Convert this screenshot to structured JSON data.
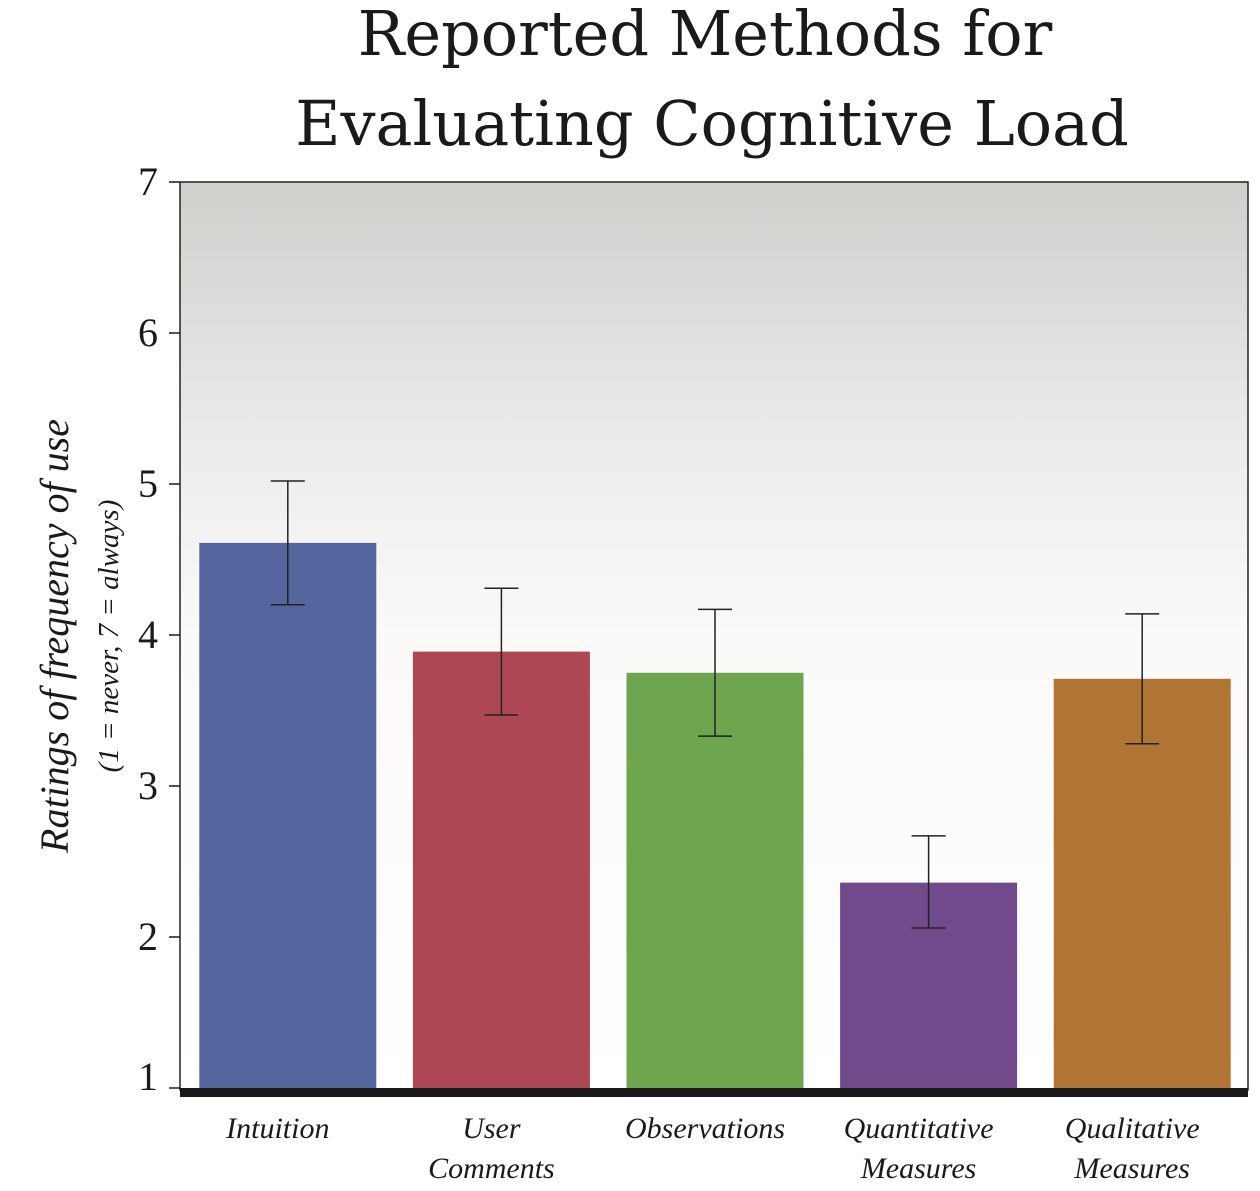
{
  "chart_data": {
    "type": "bar",
    "title_lines": [
      "Reported Methods for",
      "Evaluating Cognitive Load"
    ],
    "ylabel": "Ratings of frequency of use",
    "ylabel_sub": "(1 = never, 7 = always)",
    "xlabel": "",
    "ylim": [
      1,
      7
    ],
    "yticks": [
      "1",
      "2",
      "3",
      "4",
      "5",
      "6",
      "7"
    ],
    "categories": [
      [
        "Intuition"
      ],
      [
        "User",
        "Comments"
      ],
      [
        "Observations"
      ],
      [
        "Quantitative",
        "Measures"
      ],
      [
        "Qualitative",
        "Measures"
      ]
    ],
    "values": [
      4.61,
      3.89,
      3.75,
      2.36,
      3.71
    ],
    "error_low": [
      4.2,
      3.47,
      3.33,
      2.06,
      3.28
    ],
    "error_high": [
      5.02,
      4.31,
      4.17,
      2.67,
      4.14
    ],
    "colors": [
      "#55669f",
      "#ac4753",
      "#6ea54f",
      "#704a8a",
      "#b07435"
    ],
    "grid": false,
    "legend": "none",
    "background": "gradient gray to white"
  }
}
